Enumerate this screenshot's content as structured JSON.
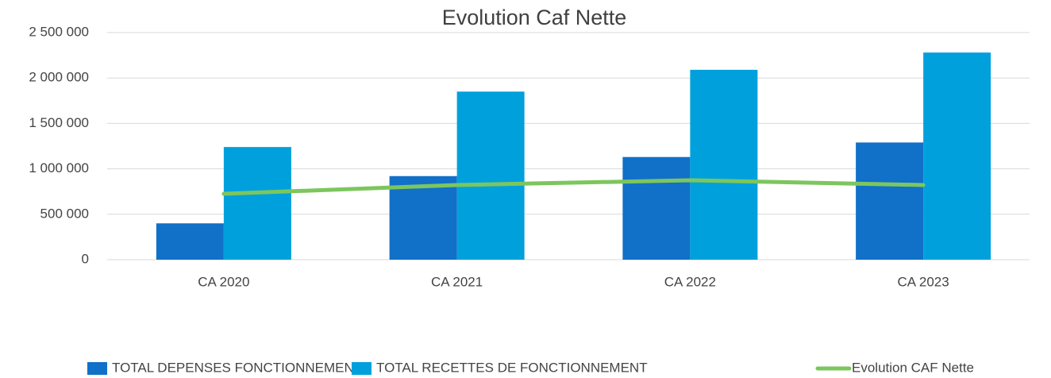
{
  "chart_data": {
    "type": "bar_line",
    "title": "Evolution Caf Nette",
    "categories": [
      "CA 2020",
      "CA 2021",
      "CA 2022",
      "CA 2023"
    ],
    "series": [
      {
        "name": "TOTAL DEPENSES FONCTIONNEMENT",
        "color": "#1170c8",
        "type": "bar",
        "values": [
          400000,
          920000,
          1130000,
          1290000
        ]
      },
      {
        "name": "TOTAL RECETTES DE FONCTIONNEMENT",
        "color": "#00a0dc",
        "type": "bar",
        "values": [
          1240000,
          1850000,
          2090000,
          2280000
        ]
      },
      {
        "name": "Evolution CAF Nette",
        "color": "#7cc65e",
        "type": "line",
        "values": [
          725000,
          822000,
          874000,
          822000
        ]
      }
    ],
    "ylim": [
      0,
      2500000
    ],
    "yticks": [
      0,
      {
        "value": 500000,
        "label": "500 000"
      },
      {
        "value": 1000000,
        "label": "1 000 000"
      },
      {
        "value": 1500000,
        "label": "1 500 000"
      },
      {
        "value": 2000000,
        "label": "2 000 000"
      },
      {
        "value": 2500000,
        "label": "2 500 000"
      }
    ],
    "grid": true,
    "legend": "bottom"
  }
}
